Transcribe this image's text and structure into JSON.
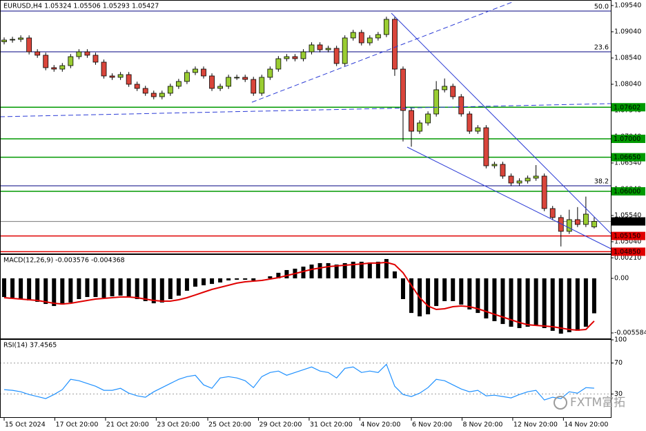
{
  "chart_data": [
    {
      "type": "candlestick",
      "title": "EURUSD,H4  1.05324 1.05506 1.05293 1.05427",
      "up_color": "#9acd32",
      "down_color": "#d9453b",
      "ohlc": [
        [
          1.0885,
          1.08932,
          1.088,
          1.08882
        ],
        [
          1.08882,
          1.08945,
          1.08832,
          1.08895
        ],
        [
          1.08895,
          1.08972,
          1.08845,
          1.08922
        ],
        [
          1.08922,
          1.08972,
          1.08608,
          1.08658
        ],
        [
          1.08658,
          1.08708,
          1.08543,
          1.08593
        ],
        [
          1.08593,
          1.08643,
          1.08306,
          1.08356
        ],
        [
          1.08356,
          1.08406,
          1.08279,
          1.08329
        ],
        [
          1.08329,
          1.08445,
          1.08279,
          1.08395
        ],
        [
          1.08395,
          1.08616,
          1.08345,
          1.08566
        ],
        [
          1.08566,
          1.08708,
          1.08516,
          1.08658
        ],
        [
          1.08658,
          1.08708,
          1.08543,
          1.08593
        ],
        [
          1.08593,
          1.08643,
          1.08411,
          1.08461
        ],
        [
          1.08461,
          1.08511,
          1.08148,
          1.08198
        ],
        [
          1.08198,
          1.08248,
          1.08122,
          1.08172
        ],
        [
          1.08172,
          1.08274,
          1.08122,
          1.08224
        ],
        [
          1.08224,
          1.08274,
          1.0799,
          1.0804
        ],
        [
          1.0804,
          1.0809,
          1.07911,
          1.07961
        ],
        [
          1.07961,
          1.08011,
          1.07819,
          1.07869
        ],
        [
          1.07869,
          1.07919,
          1.07753,
          1.07803
        ],
        [
          1.07803,
          1.07919,
          1.07753,
          1.07869
        ],
        [
          1.07869,
          1.08051,
          1.07819,
          1.08001
        ],
        [
          1.08001,
          1.08143,
          1.07951,
          1.08093
        ],
        [
          1.08093,
          1.08314,
          1.08043,
          1.08264
        ],
        [
          1.08264,
          1.08379,
          1.08214,
          1.08329
        ],
        [
          1.08329,
          1.08379,
          1.08148,
          1.08198
        ],
        [
          1.08198,
          1.08248,
          1.07911,
          1.07961
        ],
        [
          1.07961,
          1.08051,
          1.07911,
          1.08001
        ],
        [
          1.08001,
          1.08222,
          1.07951,
          1.08172
        ],
        [
          1.08172,
          1.08222,
          1.08122,
          1.08172
        ],
        [
          1.08172,
          1.08222,
          1.08082,
          1.08132
        ],
        [
          1.08132,
          1.08182,
          1.07819,
          1.07869
        ],
        [
          1.07869,
          1.08222,
          1.07819,
          1.08172
        ],
        [
          1.08172,
          1.08379,
          1.08122,
          1.08329
        ],
        [
          1.08329,
          1.08577,
          1.08279,
          1.08527
        ],
        [
          1.08527,
          1.08616,
          1.08477,
          1.08566
        ],
        [
          1.08566,
          1.08616,
          1.08477,
          1.08527
        ],
        [
          1.08527,
          1.08708,
          1.08477,
          1.08658
        ],
        [
          1.08658,
          1.0884,
          1.08608,
          1.0879
        ],
        [
          1.0879,
          1.0884,
          1.08648,
          1.08698
        ],
        [
          1.08698,
          1.08774,
          1.08648,
          1.08724
        ],
        [
          1.08724,
          1.08774,
          1.08385,
          1.08435
        ],
        [
          1.08435,
          1.08972,
          1.08385,
          1.08922
        ],
        [
          1.08922,
          1.09077,
          1.08872,
          1.09027
        ],
        [
          1.09027,
          1.09077,
          1.08779,
          1.08829
        ],
        [
          1.08829,
          1.08972,
          1.08779,
          1.08922
        ],
        [
          1.08922,
          1.09037,
          1.08872,
          1.08987
        ],
        [
          1.08987,
          1.09327,
          1.08937,
          1.09277
        ],
        [
          1.09277,
          1.0932,
          1.082,
          1.08329
        ],
        [
          1.08329,
          1.08379,
          1.0695,
          1.0754
        ],
        [
          1.0754,
          1.0759,
          1.0685,
          1.07145
        ],
        [
          1.07145,
          1.07353,
          1.07095,
          1.07303
        ],
        [
          1.07303,
          1.07524,
          1.07253,
          1.07474
        ],
        [
          1.07474,
          1.081,
          1.07424,
          1.07935
        ],
        [
          1.07935,
          1.0815,
          1.07885,
          1.08001
        ],
        [
          1.08001,
          1.08051,
          1.07753,
          1.07803
        ],
        [
          1.07803,
          1.07853,
          1.07424,
          1.07474
        ],
        [
          1.07474,
          1.07524,
          1.07095,
          1.07145
        ],
        [
          1.07145,
          1.07261,
          1.07095,
          1.07211
        ],
        [
          1.07211,
          1.07261,
          1.06437,
          1.06487
        ],
        [
          1.06487,
          1.06564,
          1.06437,
          1.06514
        ],
        [
          1.06514,
          1.06564,
          1.0624,
          1.0629
        ],
        [
          1.0629,
          1.0634,
          1.06108,
          1.06158
        ],
        [
          1.06158,
          1.06248,
          1.06108,
          1.06198
        ],
        [
          1.06198,
          1.06301,
          1.06148,
          1.06251
        ],
        [
          1.06251,
          1.065,
          1.06201,
          1.0629
        ],
        [
          1.0629,
          1.0634,
          1.05622,
          1.05672
        ],
        [
          1.05672,
          1.05722,
          1.05451,
          1.05501
        ],
        [
          1.05501,
          1.05551,
          1.0495,
          1.05238
        ],
        [
          1.05238,
          1.0565,
          1.05188,
          1.05461
        ],
        [
          1.05461,
          1.057,
          1.05319,
          1.05369
        ],
        [
          1.05369,
          1.059,
          1.05319,
          1.05566
        ],
        [
          1.05324,
          1.05506,
          1.05293,
          1.05427
        ]
      ],
      "xlim": [
        -0.5,
        73
      ],
      "xticks": [
        {
          "value": 0,
          "label": "15 Oct 2024"
        },
        {
          "value": 6.1,
          "label": "17 Oct 20:00"
        },
        {
          "value": 12.2,
          "label": "21 Oct 20:00"
        },
        {
          "value": 18.3,
          "label": "23 Oct 20:00"
        },
        {
          "value": 24.5,
          "label": "25 Oct 20:00"
        },
        {
          "value": 30.6,
          "label": "29 Oct 20:00"
        },
        {
          "value": 36.7,
          "label": "31 Oct 20:00"
        },
        {
          "value": 42.8,
          "label": "4 Nov 20:00"
        },
        {
          "value": 49,
          "label": "6 Nov 20:00"
        },
        {
          "value": 55.1,
          "label": "8 Nov 20:00"
        },
        {
          "value": 61.2,
          "label": "12 Nov 20:00"
        },
        {
          "value": 67.3,
          "label": "14 Nov 20:00"
        }
      ],
      "ylim": [
        1.04816,
        1.09645
      ],
      "yticks": [
        {
          "value": 1.0954,
          "label": "1.09540"
        },
        {
          "value": 1.0904,
          "label": "1.09040"
        },
        {
          "value": 1.0854,
          "label": "1.08540"
        },
        {
          "value": 1.0804,
          "label": "1.08040"
        },
        {
          "value": 1.0754,
          "label": "1.07540"
        },
        {
          "value": 1.0704,
          "label": "1.07040"
        },
        {
          "value": 1.0654,
          "label": "1.06540"
        },
        {
          "value": 1.0604,
          "label": "1.06040"
        },
        {
          "value": 1.0554,
          "label": "1.05540"
        },
        {
          "value": 1.0504,
          "label": "1.05040"
        }
      ],
      "levels": [
        {
          "value": 1.07602,
          "label": "1.07602",
          "color": "#009900"
        },
        {
          "value": 1.07,
          "label": "1.07000",
          "color": "#009900"
        },
        {
          "value": 1.0665,
          "label": "1.06650",
          "color": "#009900"
        },
        {
          "value": 1.06,
          "label": "1.06000",
          "color": "#009900"
        },
        {
          "value": 1.05427,
          "label": "1.05427",
          "color": "#000000"
        },
        {
          "value": 1.0515,
          "label": "1.05150",
          "color": "#e00000"
        },
        {
          "value": 1.0485,
          "label": "1.04850",
          "color": "#e00000"
        }
      ],
      "fib_levels": [
        {
          "value": 1.09435,
          "label": "50.0"
        },
        {
          "value": 1.08658,
          "label": "23.6"
        },
        {
          "value": 1.06106,
          "label": "38.2"
        }
      ],
      "fib_color": "#000080"
    },
    {
      "type": "macd",
      "title": "MACD(12,26,9) -0.003576 -0.004368",
      "ylim": [
        -0.006149,
        0.002474
      ],
      "yticks": [
        {
          "value": 0.0021,
          "label": "0.00210"
        },
        {
          "value": 0,
          "label": "0.00"
        },
        {
          "value": -0.005584,
          "label": "-0.005584"
        }
      ],
      "histogram": {
        "color": "#000000",
        "values": [
          -0.00191,
          -0.00198,
          -0.00212,
          -0.00226,
          -0.0024,
          -0.00262,
          -0.00283,
          -0.00269,
          -0.00247,
          -0.00212,
          -0.00191,
          -0.00191,
          -0.00198,
          -0.00184,
          -0.00177,
          -0.00191,
          -0.00212,
          -0.00233,
          -0.00255,
          -0.00247,
          -0.00212,
          -0.00177,
          -0.00127,
          -0.00085,
          -0.00071,
          -0.00057,
          -0.00042,
          -0.00021,
          -0.00014,
          -0.00014,
          -0.00021,
          0,
          0.00021,
          0.00057,
          0.00085,
          0.00099,
          0.0012,
          0.00141,
          0.00156,
          0.00156,
          0.00141,
          0.00156,
          0.0017,
          0.0017,
          0.00163,
          0.0017,
          0.00198,
          0.00071,
          -0.00212,
          -0.00354,
          -0.00389,
          -0.00368,
          -0.00283,
          -0.00233,
          -0.00233,
          -0.00269,
          -0.00318,
          -0.00354,
          -0.0041,
          -0.00438,
          -0.00467,
          -0.00495,
          -0.00509,
          -0.00495,
          -0.00481,
          -0.00509,
          -0.00537,
          -0.00566,
          -0.00551,
          -0.00537,
          -0.00495,
          -0.003576
        ]
      },
      "signal": {
        "color": "#e00000",
        "values": [
          -0.00198,
          -0.00205,
          -0.00212,
          -0.00219,
          -0.00226,
          -0.0024,
          -0.00255,
          -0.00262,
          -0.00255,
          -0.0024,
          -0.00226,
          -0.00212,
          -0.00205,
          -0.00198,
          -0.00191,
          -0.00191,
          -0.00198,
          -0.00212,
          -0.00226,
          -0.00233,
          -0.00233,
          -0.00219,
          -0.00198,
          -0.0017,
          -0.00141,
          -0.00113,
          -0.00092,
          -0.00071,
          -0.00049,
          -0.00035,
          -0.00028,
          -0.00021,
          -7e-05,
          7e-05,
          0.00028,
          0.00049,
          0.00071,
          0.00092,
          0.00106,
          0.0012,
          0.00127,
          0.00134,
          0.00141,
          0.00148,
          0.00156,
          0.00156,
          0.00163,
          0.00141,
          0.00057,
          -0.00071,
          -0.00198,
          -0.00283,
          -0.00318,
          -0.00311,
          -0.0029,
          -0.00283,
          -0.0029,
          -0.00311,
          -0.00339,
          -0.00368,
          -0.00396,
          -0.00424,
          -0.00452,
          -0.00474,
          -0.00481,
          -0.00488,
          -0.00495,
          -0.00509,
          -0.00523,
          -0.0053,
          -0.00523,
          -0.004368
        ]
      }
    },
    {
      "type": "line",
      "title": "RSI(14) 37.4565",
      "color": "#1e90ff",
      "ylim": [
        0,
        100
      ],
      "yticks": [
        100,
        70,
        30
      ],
      "levels": [
        70,
        30
      ],
      "values": [
        35.6,
        34.7,
        32.9,
        29.3,
        26.7,
        24.0,
        29.3,
        35.6,
        48.9,
        47.1,
        43.6,
        40.0,
        34.7,
        34.7,
        37.3,
        31.1,
        27.6,
        25.8,
        32.9,
        38.2,
        43.6,
        48.9,
        52.4,
        54.2,
        41.8,
        37.3,
        50.7,
        52.4,
        50.7,
        47.1,
        38.2,
        52.4,
        57.8,
        59.6,
        54.2,
        57.8,
        61.3,
        64.9,
        59.6,
        57.8,
        50.7,
        63.1,
        64.9,
        57.8,
        59.6,
        57.8,
        68.4,
        40.0,
        29.3,
        26.7,
        31.1,
        38.2,
        48.9,
        47.1,
        41.8,
        36.4,
        32.9,
        34.7,
        27.6,
        28.4,
        26.7,
        24.9,
        29.3,
        32.9,
        34.7,
        22.2,
        25.8,
        24.0,
        32.9,
        31.1,
        38.2,
        37.4565
      ]
    }
  ],
  "watermark": "FXTM富拓"
}
